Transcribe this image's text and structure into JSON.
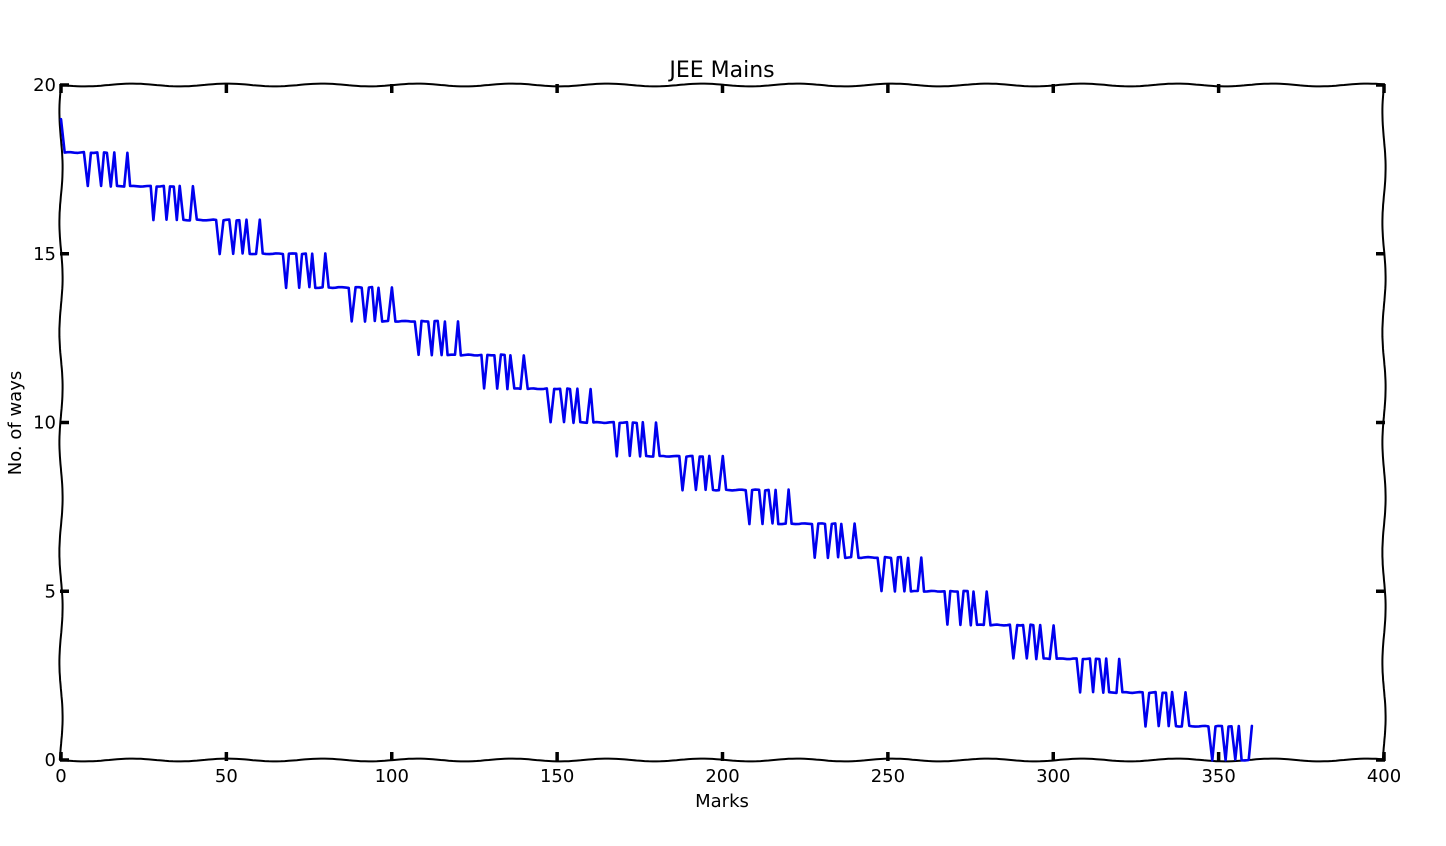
{
  "chart_data": {
    "type": "line",
    "title": "JEE Mains",
    "xlabel": "Marks",
    "ylabel": "No. of ways",
    "xlim": [
      0,
      400
    ],
    "ylim": [
      0,
      20
    ],
    "xticks": [
      0,
      50,
      100,
      150,
      200,
      250,
      300,
      350,
      400
    ],
    "yticks": [
      0,
      5,
      10,
      15,
      20
    ],
    "grid": false,
    "legend": "none",
    "style": "xkcd-hand-drawn",
    "line_color": "#0000ee",
    "series_values": "y(m) for integer marks m = 0..360: y(0) = 19, m = 1..7 -> 18; then for each block k = 0..17 with base b = 20k and c = 17 - k: b+8 -> c, b+9..b+11 -> c+1, b+12 -> c, b+13..b+14 -> c+1, b+15 -> c, b+16 -> c+1, b+17..b+19 -> c, b+20 -> c+1, b+21..b+27 -> c"
  }
}
